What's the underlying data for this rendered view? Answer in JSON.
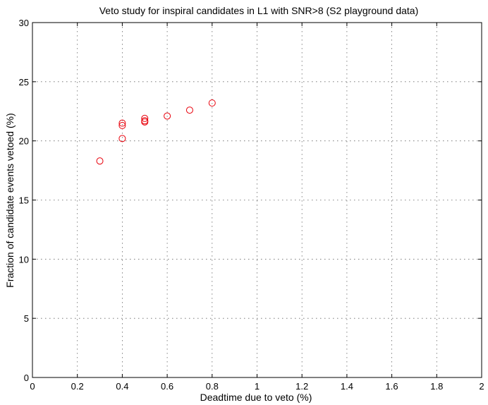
{
  "chart_data": {
    "type": "scatter",
    "title": "Veto study for inspiral candidates in L1 with SNR>8 (S2 playground data)",
    "xlabel": "Deadtime due to veto (%)",
    "ylabel": "Fraction of candidate events vetoed (%)",
    "xlim": [
      0,
      2
    ],
    "ylim": [
      0,
      30
    ],
    "xticks": [
      0,
      0.2,
      0.4,
      0.6,
      0.8,
      1,
      1.2,
      1.4,
      1.6,
      1.8,
      2
    ],
    "xtick_labels": [
      "0",
      "0.2",
      "0.4",
      "0.6",
      "0.8",
      "1",
      "1.2",
      "1.4",
      "1.6",
      "1.8",
      "2"
    ],
    "yticks": [
      0,
      5,
      10,
      15,
      20,
      25,
      30
    ],
    "ytick_labels": [
      "0",
      "5",
      "10",
      "15",
      "20",
      "25",
      "30"
    ],
    "grid": true,
    "marker": "circle-open",
    "marker_color": "#e8000b",
    "points": [
      {
        "x": 0.3,
        "y": 18.3
      },
      {
        "x": 0.4,
        "y": 20.2
      },
      {
        "x": 0.4,
        "y": 21.3
      },
      {
        "x": 0.4,
        "y": 21.5
      },
      {
        "x": 0.5,
        "y": 21.6
      },
      {
        "x": 0.5,
        "y": 21.7
      },
      {
        "x": 0.5,
        "y": 21.9
      },
      {
        "x": 0.6,
        "y": 22.1
      },
      {
        "x": 0.7,
        "y": 22.6
      },
      {
        "x": 0.8,
        "y": 23.2
      }
    ]
  }
}
